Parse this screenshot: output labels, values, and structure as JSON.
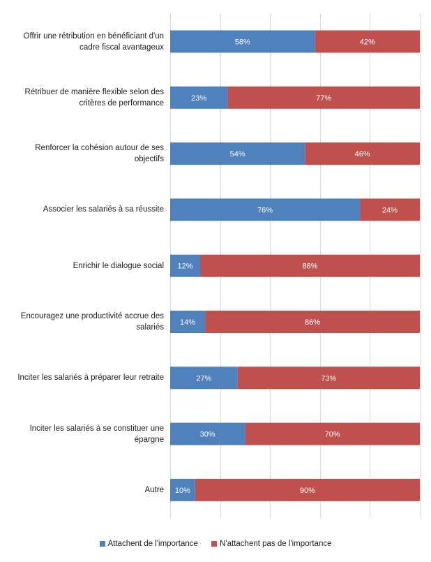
{
  "chart_data": {
    "type": "bar",
    "orientation": "horizontal",
    "stacked": true,
    "percent": true,
    "categories": [
      "Offrir une rétribution en bénéficiant d'un cadre fiscal avantageux",
      "Rétribuer de manière flexible selon des critères de performance",
      "Renforcer la cohésion autour de ses objectifs",
      "Associer les salariés à sa réussite",
      "Enrichir le dialogue social",
      "Encouragez une productivité accrue des salariés",
      "Inciter les salariés à préparer leur retraite",
      "Inciter les salariés à se constituer une épargne",
      "Autre"
    ],
    "series": [
      {
        "name": "Attachent de l'importance",
        "color": "#4f81bd",
        "values": [
          58,
          23,
          54,
          76,
          12,
          14,
          27,
          30,
          10
        ],
        "labels": [
          "58%",
          "23%",
          "54%",
          "76%",
          "12%",
          "14%",
          "27%",
          "30%",
          "10%"
        ]
      },
      {
        "name": "N'attachent pas de l'importance",
        "color": "#c0504d",
        "values": [
          42,
          77,
          46,
          24,
          88,
          86,
          73,
          70,
          90
        ],
        "labels": [
          "42%",
          "77%",
          "46%",
          "24%",
          "88%",
          "86%",
          "73%",
          "70%",
          "90%"
        ]
      }
    ],
    "xlim": [
      0,
      100
    ],
    "grid": true,
    "legend_position": "bottom"
  }
}
